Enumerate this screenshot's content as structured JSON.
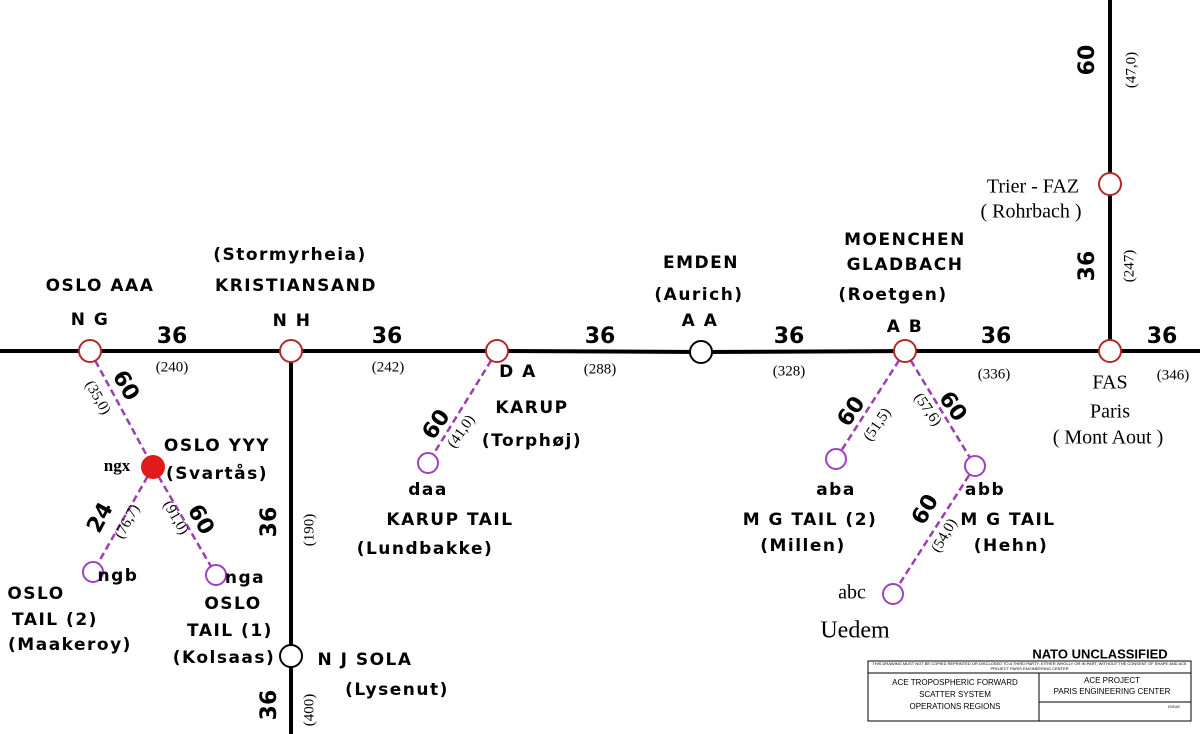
{
  "nodes": [
    {
      "labels": [
        "OSLO AAA",
        "N G"
      ]
    },
    {
      "labels": [
        "(Stormyrheia)",
        "KRISTIANSAND",
        "N H"
      ]
    },
    {
      "labels": [
        "D A",
        "KARUP",
        "(Torphøj)"
      ]
    },
    {
      "labels": [
        "EMDEN",
        "(Aurich)",
        "A A"
      ]
    },
    {
      "labels": [
        "MOENCHEN",
        "GLADBACH",
        "(Roetgen)",
        "A B"
      ]
    },
    {
      "labels": [
        "FAS",
        "Paris",
        "( Mont Aout )"
      ]
    },
    {
      "labels": [
        "Trier - FAZ",
        "( Rohrbach )"
      ]
    },
    {
      "labels": [
        "ngx",
        "OSLO YYY",
        "(Svartås)"
      ]
    },
    {
      "labels": [
        "ngb",
        "OSLO",
        "TAIL (2)",
        "(Maakeroy)"
      ]
    },
    {
      "labels": [
        "nga",
        "OSLO",
        "TAIL (1)",
        "(Kolsaas)"
      ]
    },
    {
      "labels": [
        "N J  SOLA",
        "(Lysenut)"
      ]
    },
    {
      "labels": [
        "daa",
        "KARUP TAIL",
        "(Lundbakke)"
      ]
    },
    {
      "labels": [
        "aba",
        "M G TAIL (2)",
        "(Millen)"
      ]
    },
    {
      "labels": [
        "abb",
        "M G TAIL",
        "(Hehn)"
      ]
    },
    {
      "labels": [
        "abc",
        "Uedem"
      ]
    }
  ],
  "edges": [
    {
      "channel": 36,
      "distance": "(240)"
    },
    {
      "channel": 36,
      "distance": "(242)"
    },
    {
      "channel": 36,
      "distance": "(288)"
    },
    {
      "channel": 36,
      "distance": "(328)"
    },
    {
      "channel": 36,
      "distance": "(336)"
    },
    {
      "channel": 36,
      "distance": "(346)"
    },
    {
      "channel": 36,
      "distance": "(247)"
    },
    {
      "channel": 60,
      "distance": "(47,0)"
    },
    {
      "channel": 36,
      "distance": "(190)"
    },
    {
      "channel": 36,
      "distance": "(400)"
    },
    {
      "channel": 60,
      "distance": "(35,0)"
    },
    {
      "channel": 24,
      "distance": "(76,7)"
    },
    {
      "channel": 60,
      "distance": "(91,0)"
    },
    {
      "channel": 60,
      "distance": "(41,0)"
    },
    {
      "channel": 60,
      "distance": "(51,5)"
    },
    {
      "channel": 60,
      "distance": "(57,6)"
    },
    {
      "channel": 60,
      "distance": "(54,0)"
    }
  ],
  "title_block": {
    "classification": "NATO UNCLASSIFIED",
    "notice": "THIS DRAWING MUST NOT BE COPIED REPRINTED OR DISCLOSED TO A THIRD PARTY, EITHER WHOLLY OR IN PART, WITHOUT THE CONSENT OF SHAPE AND ACE PROJECT PARIS ENGINEERING CENTER",
    "title_lines": [
      "ACE TROPOSPHERIC FORWARD",
      "SCATTER SYSTEM",
      "OPERATIONS REGIONS"
    ],
    "office_lines": [
      "ACE PROJECT",
      "PARIS ENGINEERING CENTER"
    ],
    "issue": "ISSUE"
  }
}
